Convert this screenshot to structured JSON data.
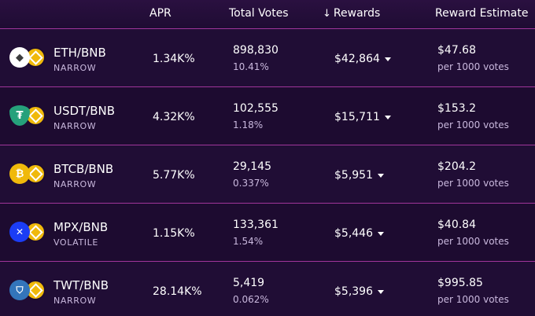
{
  "header": {
    "apr": "APR",
    "total_votes": "Total Votes",
    "rewards_arrow": "↓",
    "rewards": "Rewards",
    "reward_estimate": "Reward Estimate"
  },
  "rows": [
    {
      "pair": "ETH/BNB",
      "type": "NARROW",
      "apr": "1.34K%",
      "votes": "898,830",
      "pct": "10.41%",
      "rewards": "$42,864",
      "estimate": "$47.68",
      "per": "per 1000 votes",
      "icon_a": "ethereum-icon",
      "icon_b": "bnb-icon"
    },
    {
      "pair": "USDT/BNB",
      "type": "NARROW",
      "apr": "4.32K%",
      "votes": "102,555",
      "pct": "1.18%",
      "rewards": "$15,711",
      "estimate": "$153.2",
      "per": "per 1000 votes",
      "icon_a": "tether-icon",
      "icon_b": "bnb-icon"
    },
    {
      "pair": "BTCB/BNB",
      "type": "NARROW",
      "apr": "5.77K%",
      "votes": "29,145",
      "pct": "0.337%",
      "rewards": "$5,951",
      "estimate": "$204.2",
      "per": "per 1000 votes",
      "icon_a": "bitcoin-icon",
      "icon_b": "bnb-icon"
    },
    {
      "pair": "MPX/BNB",
      "type": "VOLATILE",
      "apr": "1.15K%",
      "votes": "133,361",
      "pct": "1.54%",
      "rewards": "$5,446",
      "estimate": "$40.84",
      "per": "per 1000 votes",
      "icon_a": "mpx-icon",
      "icon_b": "bnb-icon"
    },
    {
      "pair": "TWT/BNB",
      "type": "NARROW",
      "apr": "28.14K%",
      "votes": "5,419",
      "pct": "0.062%",
      "rewards": "$5,396",
      "estimate": "$995.85",
      "per": "per 1000 votes",
      "icon_a": "trust-wallet-icon",
      "icon_b": "bnb-icon"
    }
  ],
  "colors": {
    "background": "#1c0b2e",
    "divider": "#a0359a",
    "subtext": "#c9b8dd",
    "bnb": "#f0b90b"
  }
}
